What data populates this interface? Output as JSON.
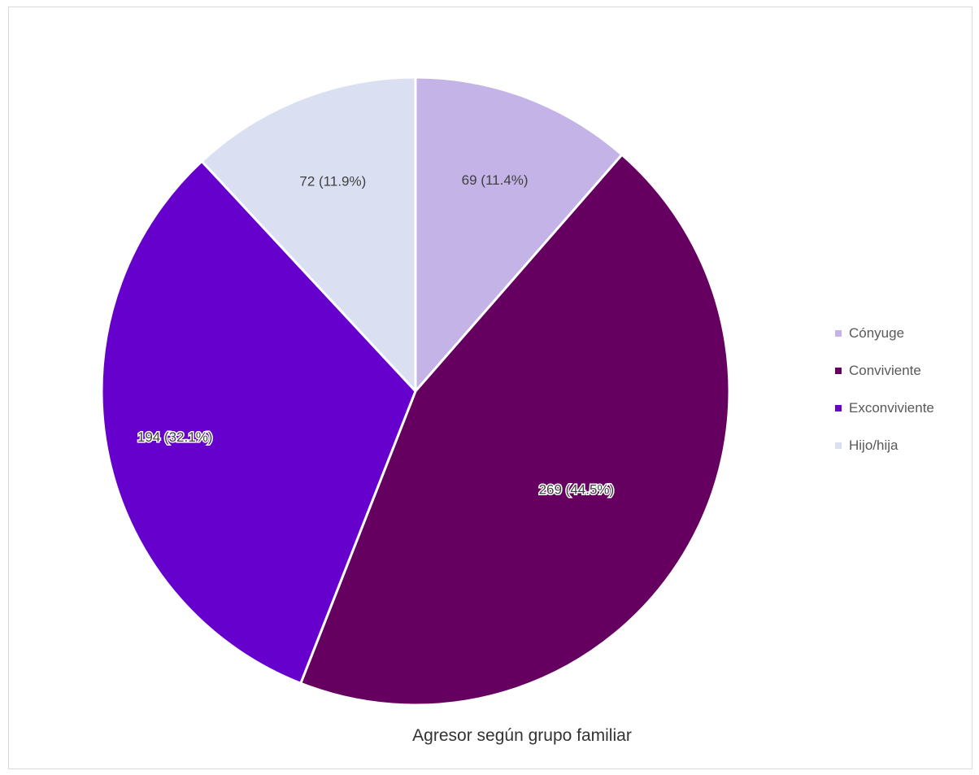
{
  "chart_data": {
    "type": "pie",
    "title": "Agresor según grupo familiar",
    "categories": [
      "Cónyuge",
      "Conviviente",
      "Exconviviente",
      "Hijo/hija"
    ],
    "values": [
      69,
      269,
      194,
      72
    ],
    "data_labels": [
      "69 (11.4%)",
      "269 (44.5%)",
      "194 (32.1%)",
      "72 (11.9%)"
    ],
    "colors": [
      "#c3b3e6",
      "#650060",
      "#6600cc",
      "#dae0f2"
    ],
    "start_angle_deg": 0,
    "direction": "clockwise",
    "legend": "right"
  }
}
